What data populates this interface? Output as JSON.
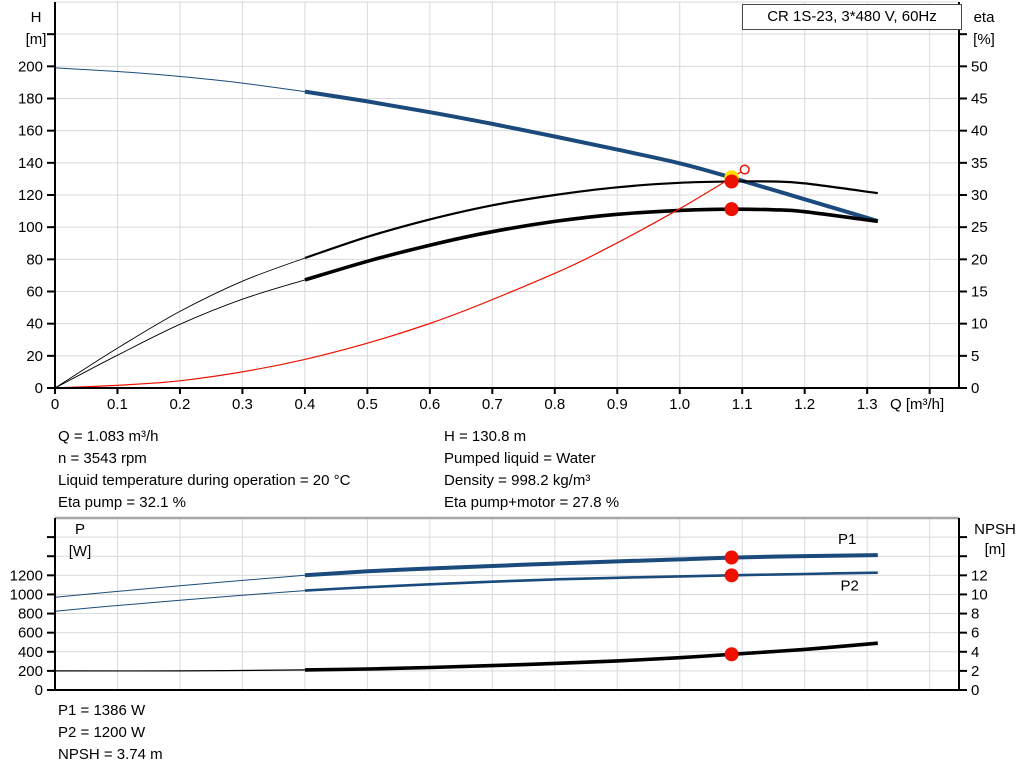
{
  "header": {
    "title_box": "CR 1S-23, 3*480 V, 60Hz"
  },
  "annotations": {
    "left": [
      "Q = 1.083 m³/h",
      "n = 3543 rpm",
      "Liquid temperature during operation = 20 °C",
      "Eta pump = 32.1 %"
    ],
    "right": [
      "H = 130.8 m",
      "Pumped liquid = Water",
      "Density = 998.2 kg/m³",
      "Eta pump+motor = 27.8 %"
    ],
    "bottom": [
      "P1 = 1386 W",
      "P2 = 1200 W",
      "NPSH = 3.74 m"
    ]
  },
  "colors": {
    "blue": "#1b4a7d",
    "black": "#000000",
    "red": "#ee1100",
    "yellow": "#ffdf00",
    "grid": "#d9d9d9",
    "axis": "#000000",
    "border_grey": "#a6a6a6"
  },
  "chart_data": [
    {
      "id": "qh-eta-chart",
      "type": "line",
      "title": "CR 1S-23, 3*480 V, 60Hz",
      "x_axis": {
        "label": "Q [m³/h]",
        "range": [
          0,
          1.447
        ],
        "tick_step": 0.1,
        "tick_max": 1.4,
        "labeled_max": 1.3
      },
      "y_left": {
        "titles": [
          "H",
          "[m]"
        ],
        "range": [
          0,
          240
        ],
        "tick_step": 20,
        "labeled_max": 200
      },
      "y_right": {
        "titles": [
          "eta",
          "[%]"
        ],
        "range": [
          0,
          60
        ],
        "tick_step": 5,
        "labeled_max": 50
      },
      "series": [
        {
          "name": "qh-extension",
          "axis": "left",
          "color": "blue",
          "width": 1,
          "points": [
            [
              0,
              199
            ],
            [
              0.1,
              196.8
            ],
            [
              0.2,
              193.7
            ],
            [
              0.3,
              189.6
            ],
            [
              0.4,
              184.3
            ]
          ]
        },
        {
          "name": "qh-curve",
          "axis": "left",
          "color": "blue",
          "width": 4,
          "points": [
            [
              0.4,
              184.3
            ],
            [
              0.5,
              178.2
            ],
            [
              0.6,
              171.5
            ],
            [
              0.7,
              164.2
            ],
            [
              0.8,
              156.4
            ],
            [
              0.9,
              148.2
            ],
            [
              1.0,
              139.7
            ],
            [
              1.083,
              130.8
            ],
            [
              1.2,
              117.3
            ],
            [
              1.317,
              103.8
            ]
          ]
        },
        {
          "name": "eta-pump-extension",
          "axis": "right",
          "color": "black",
          "width": 0.9,
          "points": [
            [
              0,
              0
            ],
            [
              0.1,
              6.2
            ],
            [
              0.2,
              11.9
            ],
            [
              0.3,
              16.6
            ],
            [
              0.4,
              20.2
            ]
          ]
        },
        {
          "name": "eta-pump-curve",
          "axis": "right",
          "color": "black",
          "width": 2.2,
          "points": [
            [
              0.4,
              20.2
            ],
            [
              0.5,
              23.5
            ],
            [
              0.6,
              26.2
            ],
            [
              0.7,
              28.4
            ],
            [
              0.8,
              30.0
            ],
            [
              0.9,
              31.2
            ],
            [
              1.0,
              31.9
            ],
            [
              1.083,
              32.1
            ],
            [
              1.15,
              32.1
            ],
            [
              1.2,
              31.8
            ],
            [
              1.317,
              30.3
            ]
          ]
        },
        {
          "name": "eta-pump-motor-extension",
          "axis": "right",
          "color": "black",
          "width": 0.9,
          "points": [
            [
              0,
              0
            ],
            [
              0.1,
              5.1
            ],
            [
              0.2,
              9.9
            ],
            [
              0.3,
              13.8
            ],
            [
              0.4,
              16.8
            ]
          ]
        },
        {
          "name": "eta-pump-motor-curve",
          "axis": "right",
          "color": "black",
          "width": 3.6,
          "points": [
            [
              0.4,
              16.8
            ],
            [
              0.5,
              19.7
            ],
            [
              0.6,
              22.2
            ],
            [
              0.7,
              24.3
            ],
            [
              0.8,
              25.9
            ],
            [
              0.9,
              27.0
            ],
            [
              1.0,
              27.6
            ],
            [
              1.083,
              27.8
            ],
            [
              1.15,
              27.7
            ],
            [
              1.2,
              27.4
            ],
            [
              1.317,
              25.9
            ]
          ]
        },
        {
          "name": "system-curve",
          "axis": "left",
          "color": "red",
          "width": 1.2,
          "points": [
            [
              0,
              0
            ],
            [
              0.2,
              4.5
            ],
            [
              0.4,
              17.8
            ],
            [
              0.6,
              40.1
            ],
            [
              0.8,
              71.3
            ],
            [
              0.9,
              90.3
            ],
            [
              1.0,
              111.5
            ],
            [
              1.083,
              130.8
            ],
            [
              1.104,
              135.8
            ]
          ]
        }
      ],
      "markers": [
        {
          "name": "duty-point-qh",
          "axis": "left",
          "x": 1.083,
          "y": 130.8,
          "r": 7.2,
          "style": "fill",
          "color": "yellow"
        },
        {
          "name": "duty-point-eta-pump",
          "axis": "right",
          "x": 1.083,
          "y": 32.1,
          "r": 7,
          "style": "fill",
          "color": "red"
        },
        {
          "name": "duty-point-eta-pump-motor",
          "axis": "right",
          "x": 1.083,
          "y": 27.8,
          "r": 7,
          "style": "fill",
          "color": "red"
        },
        {
          "name": "rated-point-open-circle",
          "axis": "left",
          "x": 1.104,
          "y": 135.8,
          "r": 4.3,
          "style": "open",
          "color": "red"
        }
      ],
      "curve_labels": []
    },
    {
      "id": "power-npsh-chart",
      "type": "line",
      "title": "",
      "x_axis": {
        "label": "",
        "range": [
          0,
          1.447
        ],
        "tick_step": 0.1,
        "tick_max": 1.4,
        "labeled_max": null
      },
      "y_left": {
        "titles": [
          "P",
          "[W]"
        ],
        "range": [
          0,
          1800
        ],
        "tick_step": 200,
        "labeled_max": 1200
      },
      "y_right": {
        "titles": [
          "NPSH",
          "[m]"
        ],
        "range": [
          0,
          18
        ],
        "tick_step": 2,
        "labeled_max": 12
      },
      "series": [
        {
          "name": "p1-extension",
          "axis": "left",
          "color": "blue",
          "width": 1,
          "points": [
            [
              0,
              970
            ],
            [
              0.1,
              1032
            ],
            [
              0.2,
              1091
            ],
            [
              0.3,
              1147
            ],
            [
              0.4,
              1200
            ]
          ]
        },
        {
          "name": "p1-curve",
          "axis": "left",
          "color": "blue",
          "width": 4,
          "points": [
            [
              0.4,
              1200
            ],
            [
              0.5,
              1242
            ],
            [
              0.6,
              1271
            ],
            [
              0.7,
              1298
            ],
            [
              0.8,
              1323
            ],
            [
              0.9,
              1346
            ],
            [
              1.0,
              1367
            ],
            [
              1.083,
              1386
            ],
            [
              1.2,
              1401
            ],
            [
              1.317,
              1412
            ]
          ]
        },
        {
          "name": "p2-extension",
          "axis": "left",
          "color": "blue",
          "width": 1,
          "points": [
            [
              0,
              825
            ],
            [
              0.1,
              884
            ],
            [
              0.2,
              939
            ],
            [
              0.3,
              991
            ],
            [
              0.4,
              1040
            ]
          ]
        },
        {
          "name": "p2-curve",
          "axis": "left",
          "color": "blue",
          "width": 2.6,
          "points": [
            [
              0.4,
              1040
            ],
            [
              0.5,
              1076
            ],
            [
              0.6,
              1106
            ],
            [
              0.7,
              1133
            ],
            [
              0.8,
              1157
            ],
            [
              0.9,
              1174
            ],
            [
              1.0,
              1189
            ],
            [
              1.083,
              1200
            ],
            [
              1.2,
              1214
            ],
            [
              1.317,
              1228
            ]
          ]
        },
        {
          "name": "npsh-extension",
          "axis": "right",
          "color": "black",
          "width": 1.2,
          "points": [
            [
              0,
              2.0
            ],
            [
              0.2,
              2.0
            ],
            [
              0.4,
              2.1
            ]
          ]
        },
        {
          "name": "npsh-curve",
          "axis": "right",
          "color": "black",
          "width": 3.6,
          "points": [
            [
              0.4,
              2.1
            ],
            [
              0.5,
              2.2
            ],
            [
              0.6,
              2.35
            ],
            [
              0.7,
              2.55
            ],
            [
              0.8,
              2.78
            ],
            [
              0.9,
              3.05
            ],
            [
              1.0,
              3.38
            ],
            [
              1.083,
              3.74
            ],
            [
              1.2,
              4.25
            ],
            [
              1.317,
              4.9
            ]
          ]
        }
      ],
      "markers": [
        {
          "name": "duty-point-p1",
          "axis": "left",
          "x": 1.083,
          "y": 1386,
          "r": 7,
          "style": "fill",
          "color": "red"
        },
        {
          "name": "duty-point-p2",
          "axis": "left",
          "x": 1.083,
          "y": 1200,
          "r": 7,
          "style": "fill",
          "color": "red"
        },
        {
          "name": "duty-point-npsh",
          "axis": "right",
          "x": 1.083,
          "y": 3.74,
          "r": 7,
          "style": "fill",
          "color": "red"
        }
      ],
      "curve_labels": [
        {
          "text": "P1",
          "axis": "left",
          "x": 1.268,
          "y": 1530,
          "color": "blue"
        },
        {
          "text": "P2",
          "axis": "left",
          "x": 1.272,
          "y": 1040,
          "color": "blue"
        }
      ]
    }
  ]
}
